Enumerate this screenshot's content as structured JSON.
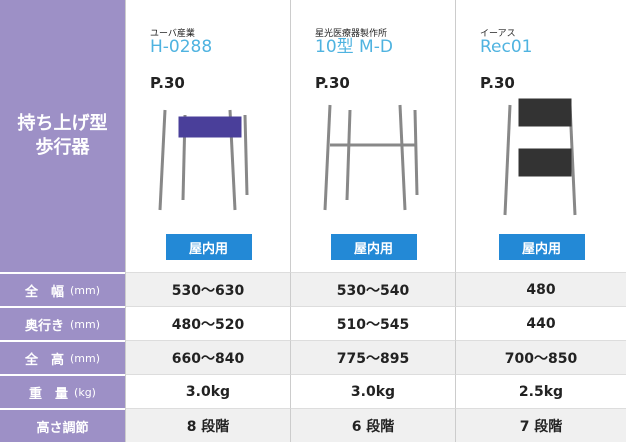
{
  "header": {
    "category": [
      "持ち上げ型",
      "歩行器"
    ]
  },
  "products": [
    {
      "maker": "ユーバ産業",
      "model": "H-0288",
      "page": "P.30",
      "badge": "屋内用"
    },
    {
      "maker": "星光医療器製作所",
      "model": "10型 M-D",
      "page": "P.30",
      "badge": "屋内用"
    },
    {
      "maker": "イーアス",
      "model": "Rec01",
      "page": "P.30",
      "badge": "屋内用"
    }
  ],
  "rows": [
    {
      "label": "全　幅",
      "unit": "(mm)",
      "values": [
        "530～630",
        "530～540",
        "480"
      ]
    },
    {
      "label": "奥行き",
      "unit": "(mm)",
      "values": [
        "480～520",
        "510～545",
        "440"
      ]
    },
    {
      "label": "全　高",
      "unit": "(mm)",
      "values": [
        "660～840",
        "775～895",
        "700～850"
      ]
    },
    {
      "label": "重　量",
      "unit": "(kg)",
      "values": [
        "3.0kg",
        "3.0kg",
        "2.5kg"
      ]
    },
    {
      "label": "高さ調節",
      "values": [
        "8 段階",
        "6 段階",
        "7 段階"
      ]
    }
  ]
}
